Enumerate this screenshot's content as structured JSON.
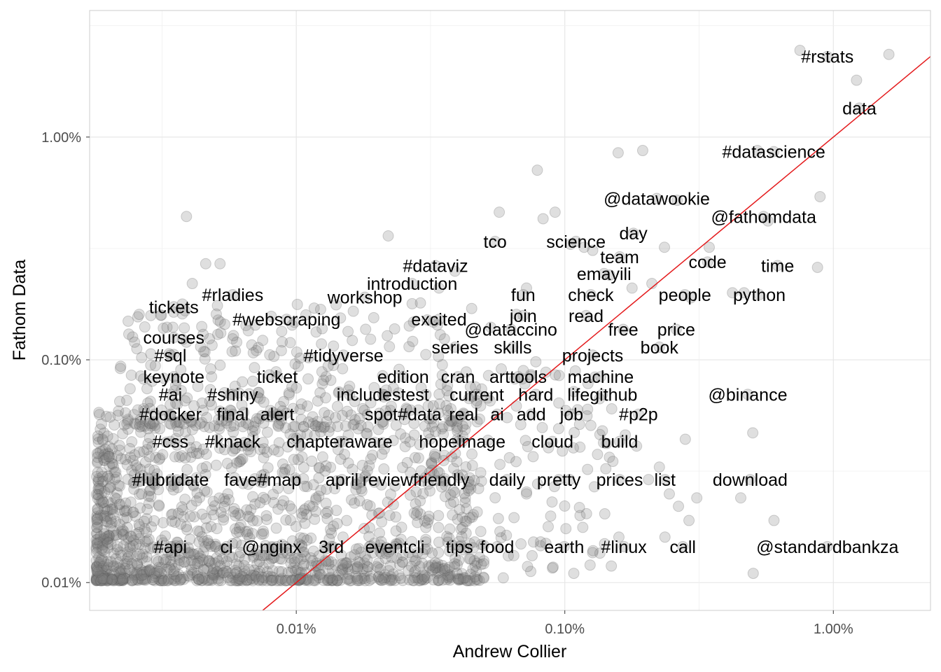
{
  "chart_data": {
    "type": "scatter",
    "title": "",
    "xlabel": "Andrew Collier",
    "ylabel": "Fathom Data",
    "scale": "log10",
    "xlim_percent": [
      0.0017,
      2.3
    ],
    "ylim_percent": [
      0.0075,
      3.7
    ],
    "x_ticks": [
      0.01,
      0.1,
      1.0
    ],
    "x_tick_labels": [
      "0.01%",
      "0.10%",
      "1.00%"
    ],
    "y_ticks": [
      0.01,
      0.1,
      1.0
    ],
    "y_tick_labels": [
      "0.01%",
      "0.10%",
      "1.00%"
    ],
    "grid": true,
    "reference_line": {
      "type": "y=x",
      "color": "#e41a1c"
    },
    "point_color": "#808080",
    "point_opacity": 0.25,
    "labeled_words": [
      {
        "label": "#rstats",
        "x": 0.95,
        "y": 2.3
      },
      {
        "label": "data",
        "x": 1.25,
        "y": 1.35
      },
      {
        "label": "#datascience",
        "x": 0.6,
        "y": 0.86
      },
      {
        "label": "@datawookie",
        "x": 0.22,
        "y": 0.53
      },
      {
        "label": "@fathomdata",
        "x": 0.55,
        "y": 0.44
      },
      {
        "label": "day",
        "x": 0.18,
        "y": 0.37
      },
      {
        "label": "tco",
        "x": 0.055,
        "y": 0.34
      },
      {
        "label": "science",
        "x": 0.11,
        "y": 0.34
      },
      {
        "label": "team",
        "x": 0.16,
        "y": 0.29
      },
      {
        "label": "code",
        "x": 0.34,
        "y": 0.275
      },
      {
        "label": "time",
        "x": 0.62,
        "y": 0.265
      },
      {
        "label": "#dataviz",
        "x": 0.033,
        "y": 0.265
      },
      {
        "label": "emayili",
        "x": 0.14,
        "y": 0.244
      },
      {
        "label": "introduction",
        "x": 0.027,
        "y": 0.22
      },
      {
        "label": "#rladies",
        "x": 0.0058,
        "y": 0.196
      },
      {
        "label": "workshop",
        "x": 0.018,
        "y": 0.191
      },
      {
        "label": "fun",
        "x": 0.07,
        "y": 0.196
      },
      {
        "label": "check",
        "x": 0.125,
        "y": 0.196
      },
      {
        "label": "people",
        "x": 0.28,
        "y": 0.196
      },
      {
        "label": "python",
        "x": 0.53,
        "y": 0.196
      },
      {
        "label": "tickets",
        "x": 0.0035,
        "y": 0.173
      },
      {
        "label": "join",
        "x": 0.07,
        "y": 0.158
      },
      {
        "label": "read",
        "x": 0.12,
        "y": 0.158
      },
      {
        "label": "#webscraping",
        "x": 0.0092,
        "y": 0.152
      },
      {
        "label": "excited",
        "x": 0.034,
        "y": 0.152
      },
      {
        "label": "@dataccino",
        "x": 0.063,
        "y": 0.137
      },
      {
        "label": "free",
        "x": 0.165,
        "y": 0.137
      },
      {
        "label": "price",
        "x": 0.26,
        "y": 0.137
      },
      {
        "label": "courses",
        "x": 0.0035,
        "y": 0.126
      },
      {
        "label": "series",
        "x": 0.039,
        "y": 0.114
      },
      {
        "label": "skills",
        "x": 0.064,
        "y": 0.114
      },
      {
        "label": "book",
        "x": 0.225,
        "y": 0.114
      },
      {
        "label": "#sql",
        "x": 0.0034,
        "y": 0.105
      },
      {
        "label": "#tidyverse",
        "x": 0.015,
        "y": 0.105
      },
      {
        "label": "projects",
        "x": 0.127,
        "y": 0.105
      },
      {
        "label": "keynote",
        "x": 0.0035,
        "y": 0.084
      },
      {
        "label": "ticket",
        "x": 0.0085,
        "y": 0.084
      },
      {
        "label": "edition",
        "x": 0.025,
        "y": 0.084
      },
      {
        "label": "cran",
        "x": 0.04,
        "y": 0.084
      },
      {
        "label": "arttools",
        "x": 0.067,
        "y": 0.084
      },
      {
        "label": "machine",
        "x": 0.136,
        "y": 0.084
      },
      {
        "label": "#ai",
        "x": 0.0034,
        "y": 0.07
      },
      {
        "label": "#shiny",
        "x": 0.0058,
        "y": 0.07
      },
      {
        "label": "includestest",
        "x": 0.021,
        "y": 0.07
      },
      {
        "label": "current",
        "x": 0.047,
        "y": 0.07
      },
      {
        "label": "hard",
        "x": 0.078,
        "y": 0.07
      },
      {
        "label": "lifegithub",
        "x": 0.138,
        "y": 0.07
      },
      {
        "label": "@binance",
        "x": 0.48,
        "y": 0.07
      },
      {
        "label": "#docker",
        "x": 0.0034,
        "y": 0.057
      },
      {
        "label": "final",
        "x": 0.0058,
        "y": 0.057
      },
      {
        "label": "alert",
        "x": 0.0085,
        "y": 0.057
      },
      {
        "label": "spot#data",
        "x": 0.025,
        "y": 0.057
      },
      {
        "label": "real",
        "x": 0.042,
        "y": 0.057
      },
      {
        "label": "ai",
        "x": 0.056,
        "y": 0.057
      },
      {
        "label": "add",
        "x": 0.075,
        "y": 0.057
      },
      {
        "label": "job",
        "x": 0.106,
        "y": 0.057
      },
      {
        "label": "#p2p",
        "x": 0.188,
        "y": 0.057
      },
      {
        "label": "#css",
        "x": 0.0034,
        "y": 0.043
      },
      {
        "label": "#knack",
        "x": 0.0058,
        "y": 0.043
      },
      {
        "label": "chapteraware",
        "x": 0.0145,
        "y": 0.043
      },
      {
        "label": "hopeimage",
        "x": 0.0415,
        "y": 0.043
      },
      {
        "label": "cloud",
        "x": 0.09,
        "y": 0.043
      },
      {
        "label": "build",
        "x": 0.16,
        "y": 0.043
      },
      {
        "label": "#lubridate",
        "x": 0.0034,
        "y": 0.029
      },
      {
        "label": "fave#map",
        "x": 0.0075,
        "y": 0.029
      },
      {
        "label": "april",
        "x": 0.0148,
        "y": 0.029
      },
      {
        "label": "reviewfriendly",
        "x": 0.0279,
        "y": 0.029
      },
      {
        "label": "daily",
        "x": 0.061,
        "y": 0.029
      },
      {
        "label": "pretty",
        "x": 0.095,
        "y": 0.029
      },
      {
        "label": "prices",
        "x": 0.16,
        "y": 0.029
      },
      {
        "label": "list",
        "x": 0.236,
        "y": 0.029
      },
      {
        "label": "download",
        "x": 0.49,
        "y": 0.029
      },
      {
        "label": "#api",
        "x": 0.0034,
        "y": 0.0145
      },
      {
        "label": "ci",
        "x": 0.0055,
        "y": 0.0145
      },
      {
        "label": "@nginx",
        "x": 0.0081,
        "y": 0.0145
      },
      {
        "label": "3rd",
        "x": 0.0135,
        "y": 0.0145
      },
      {
        "label": "eventcli",
        "x": 0.0233,
        "y": 0.0145
      },
      {
        "label": "tips",
        "x": 0.0405,
        "y": 0.0145
      },
      {
        "label": "food",
        "x": 0.056,
        "y": 0.0145
      },
      {
        "label": "earth",
        "x": 0.0995,
        "y": 0.0145
      },
      {
        "label": "#linux",
        "x": 0.166,
        "y": 0.0145
      },
      {
        "label": "call",
        "x": 0.275,
        "y": 0.0145
      },
      {
        "label": "@standardbankza",
        "x": 0.95,
        "y": 0.0145
      }
    ],
    "unlabeled_points": [
      [
        0.0039,
        0.44
      ],
      [
        0.0046,
        0.27
      ],
      [
        0.0052,
        0.27
      ],
      [
        0.0041,
        0.22
      ],
      [
        0.0026,
        0.16
      ],
      [
        0.0045,
        0.13
      ],
      [
        0.0033,
        0.14
      ],
      [
        0.0051,
        0.13
      ],
      [
        0.0025,
        0.12
      ],
      [
        0.006,
        0.12
      ],
      [
        0.0039,
        0.12
      ],
      [
        0.0071,
        0.11
      ],
      [
        0.0088,
        0.11
      ],
      [
        0.0022,
        0.065
      ],
      [
        0.0019,
        0.044
      ],
      [
        0.0021,
        0.051
      ],
      [
        0.0028,
        0.064
      ],
      [
        0.0031,
        0.049
      ],
      [
        0.0043,
        0.076
      ],
      [
        0.0048,
        0.091
      ],
      [
        0.0065,
        0.052
      ],
      [
        0.0072,
        0.068
      ],
      [
        0.0058,
        0.039
      ],
      [
        0.0069,
        0.045
      ],
      [
        0.0082,
        0.058
      ],
      [
        0.0094,
        0.071
      ],
      [
        0.011,
        0.062
      ],
      [
        0.0125,
        0.078
      ],
      [
        0.014,
        0.055
      ],
      [
        0.017,
        0.049
      ],
      [
        0.0165,
        0.065
      ],
      [
        0.0195,
        0.075
      ],
      [
        0.0215,
        0.059
      ],
      [
        0.024,
        0.071
      ],
      [
        0.0275,
        0.046
      ],
      [
        0.031,
        0.062
      ],
      [
        0.035,
        0.095
      ],
      [
        0.038,
        0.053
      ],
      [
        0.044,
        0.067
      ],
      [
        0.049,
        0.074
      ],
      [
        0.052,
        0.085
      ],
      [
        0.058,
        0.091
      ],
      [
        0.061,
        0.055
      ],
      [
        0.066,
        0.062
      ],
      [
        0.071,
        0.078
      ],
      [
        0.078,
        0.098
      ],
      [
        0.085,
        0.088
      ],
      [
        0.095,
        0.064
      ],
      [
        0.108,
        0.072
      ],
      [
        0.121,
        0.056
      ],
      [
        0.138,
        0.048
      ],
      [
        0.151,
        0.035
      ],
      [
        0.168,
        0.046
      ],
      [
        0.185,
        0.041
      ],
      [
        0.205,
        0.029
      ],
      [
        0.225,
        0.033
      ],
      [
        0.245,
        0.025
      ],
      [
        0.265,
        0.022
      ],
      [
        0.29,
        0.019
      ],
      [
        0.31,
        0.024
      ],
      [
        0.022,
        0.36
      ],
      [
        0.029,
        0.18
      ],
      [
        0.034,
        0.21
      ],
      [
        0.039,
        0.25
      ],
      [
        0.045,
        0.17
      ],
      [
        0.053,
        0.14
      ],
      [
        0.057,
        0.46
      ],
      [
        0.066,
        0.16
      ],
      [
        0.072,
        0.21
      ],
      [
        0.079,
        0.71
      ],
      [
        0.083,
        0.43
      ],
      [
        0.092,
        0.46
      ],
      [
        0.105,
        0.33
      ],
      [
        0.118,
        0.32
      ],
      [
        0.127,
        0.31
      ],
      [
        0.147,
        0.24
      ],
      [
        0.158,
        0.85
      ],
      [
        0.178,
        0.21
      ],
      [
        0.195,
        0.87
      ],
      [
        0.211,
        0.22
      ],
      [
        0.235,
        0.32
      ],
      [
        0.262,
        0.52
      ],
      [
        0.295,
        0.19
      ],
      [
        0.345,
        0.32
      ],
      [
        0.421,
        0.2
      ],
      [
        0.465,
        0.2
      ],
      [
        0.521,
        0.87
      ],
      [
        0.571,
        0.42
      ],
      [
        0.892,
        0.54
      ],
      [
        0.873,
        0.26
      ],
      [
        0.751,
        2.45
      ],
      [
        1.61,
        2.35
      ],
      [
        1.22,
        1.8
      ],
      [
        0.501,
        0.047
      ],
      [
        0.452,
        0.024
      ],
      [
        0.503,
        0.011
      ],
      [
        0.601,
        0.019
      ],
      [
        0.281,
        0.044
      ],
      [
        0.236,
        0.016
      ],
      [
        0.159,
        0.016
      ],
      [
        0.108,
        0.011
      ],
      [
        0.085,
        0.015
      ],
      [
        0.072,
        0.025
      ],
      [
        0.059,
        0.0105
      ],
      [
        0.042,
        0.0105
      ]
    ]
  }
}
